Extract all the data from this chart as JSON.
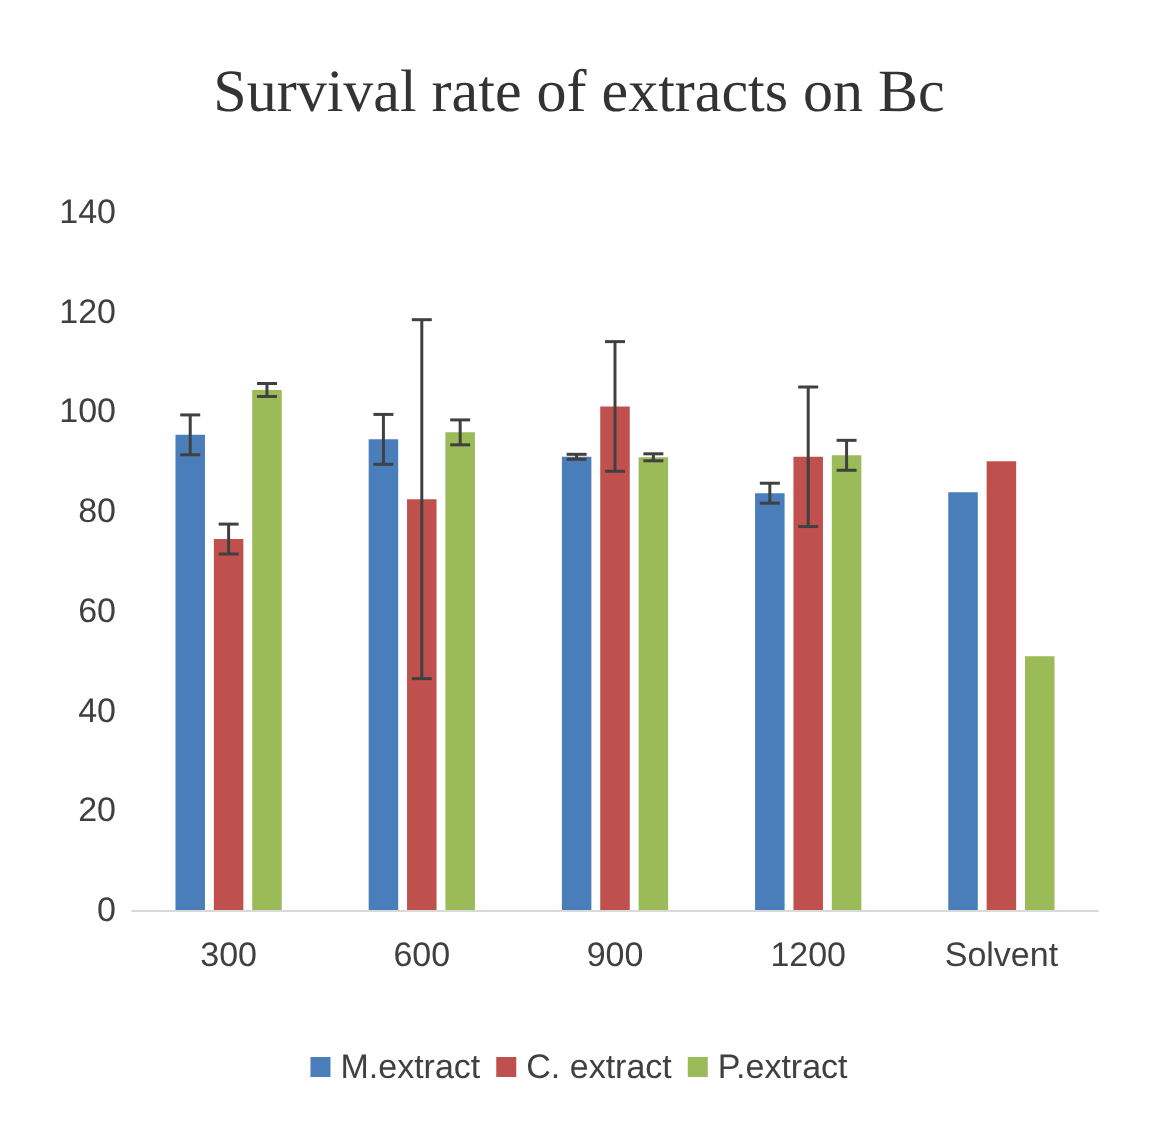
{
  "chart_data": {
    "type": "bar",
    "title": "Survival rate of extracts on Bc",
    "categories": [
      "300",
      "600",
      "900",
      "1200",
      "Solvent"
    ],
    "series": [
      {
        "name": "M.extract",
        "color": "#4a7ebb",
        "values": [
          95.3,
          94.4,
          90.9,
          83.6,
          83.8
        ],
        "errors": [
          4,
          5,
          0.5,
          2,
          null
        ]
      },
      {
        "name": "C. extract",
        "color": "#c0504d",
        "values": [
          74.4,
          82.4,
          101,
          90.9,
          90
        ],
        "errors": [
          3,
          36,
          13,
          14,
          null
        ]
      },
      {
        "name": "P.extract",
        "color": "#9bbb59",
        "values": [
          104.3,
          95.8,
          90.8,
          91.2,
          50.9
        ],
        "errors": [
          1.3,
          2.5,
          0.7,
          3,
          null
        ]
      }
    ],
    "ylim": [
      0,
      140
    ],
    "yticks": [
      0,
      20,
      40,
      60,
      80,
      100,
      120,
      140
    ],
    "grid": false,
    "legend": "bottom"
  }
}
